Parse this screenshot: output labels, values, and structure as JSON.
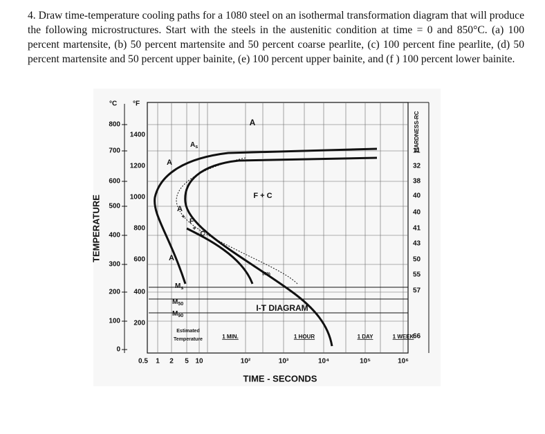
{
  "problem": {
    "text": "4. Draw time-temperature cooling paths for a 1080 steel on an isothermal transformation diagram that will produce the following microstructures. Start with the steels in the austenitic condition at time = 0 and 850°C. (a) 100 percent martensite, (b) 50 percent martensite and 50 percent coarse pearlite, (c) 100 percent fine pearlite, (d) 50 percent martensite and 50 percent upper bainite, (e) 100 percent upper bainite, and (f ) 100 percent lower bainite."
  },
  "diagram": {
    "celsius_unit": "°C",
    "fahrenheit_unit": "°F",
    "y_title": "TEMPERATURE",
    "celsius_ticks": [
      "800",
      "700",
      "600",
      "500",
      "400",
      "300",
      "200",
      "100",
      "0"
    ],
    "fahrenheit_ticks": [
      "1400",
      "1200",
      "1000",
      "800",
      "600",
      "400",
      "200"
    ],
    "hardness_title": "HARDNESS-RC",
    "hardness_values": [
      "11",
      "32",
      "38",
      "40",
      "40",
      "41",
      "43",
      "50",
      "55",
      "57",
      "66"
    ],
    "x_ticks": [
      "0.5",
      "1",
      "2",
      "5",
      "10",
      "10²",
      "10³",
      "10⁴",
      "10⁵",
      "10⁶"
    ],
    "x_title": "TIME - SECONDS",
    "time_marks": [
      "1 MIN.",
      "1 HOUR",
      "1 DAY",
      "1 WEEK"
    ],
    "regions": [
      "A",
      "A",
      "F + C",
      "A",
      "F",
      "+",
      "C",
      "+",
      "A",
      "50%",
      "I-T DIAGRAM",
      "Estimated",
      "Temperature"
    ],
    "subscripted": [
      {
        "main": "A",
        "sub": "s"
      },
      {
        "main": "M",
        "sub": "s"
      },
      {
        "main": "M",
        "sub": "50"
      },
      {
        "main": "M",
        "sub": "90"
      }
    ]
  }
}
